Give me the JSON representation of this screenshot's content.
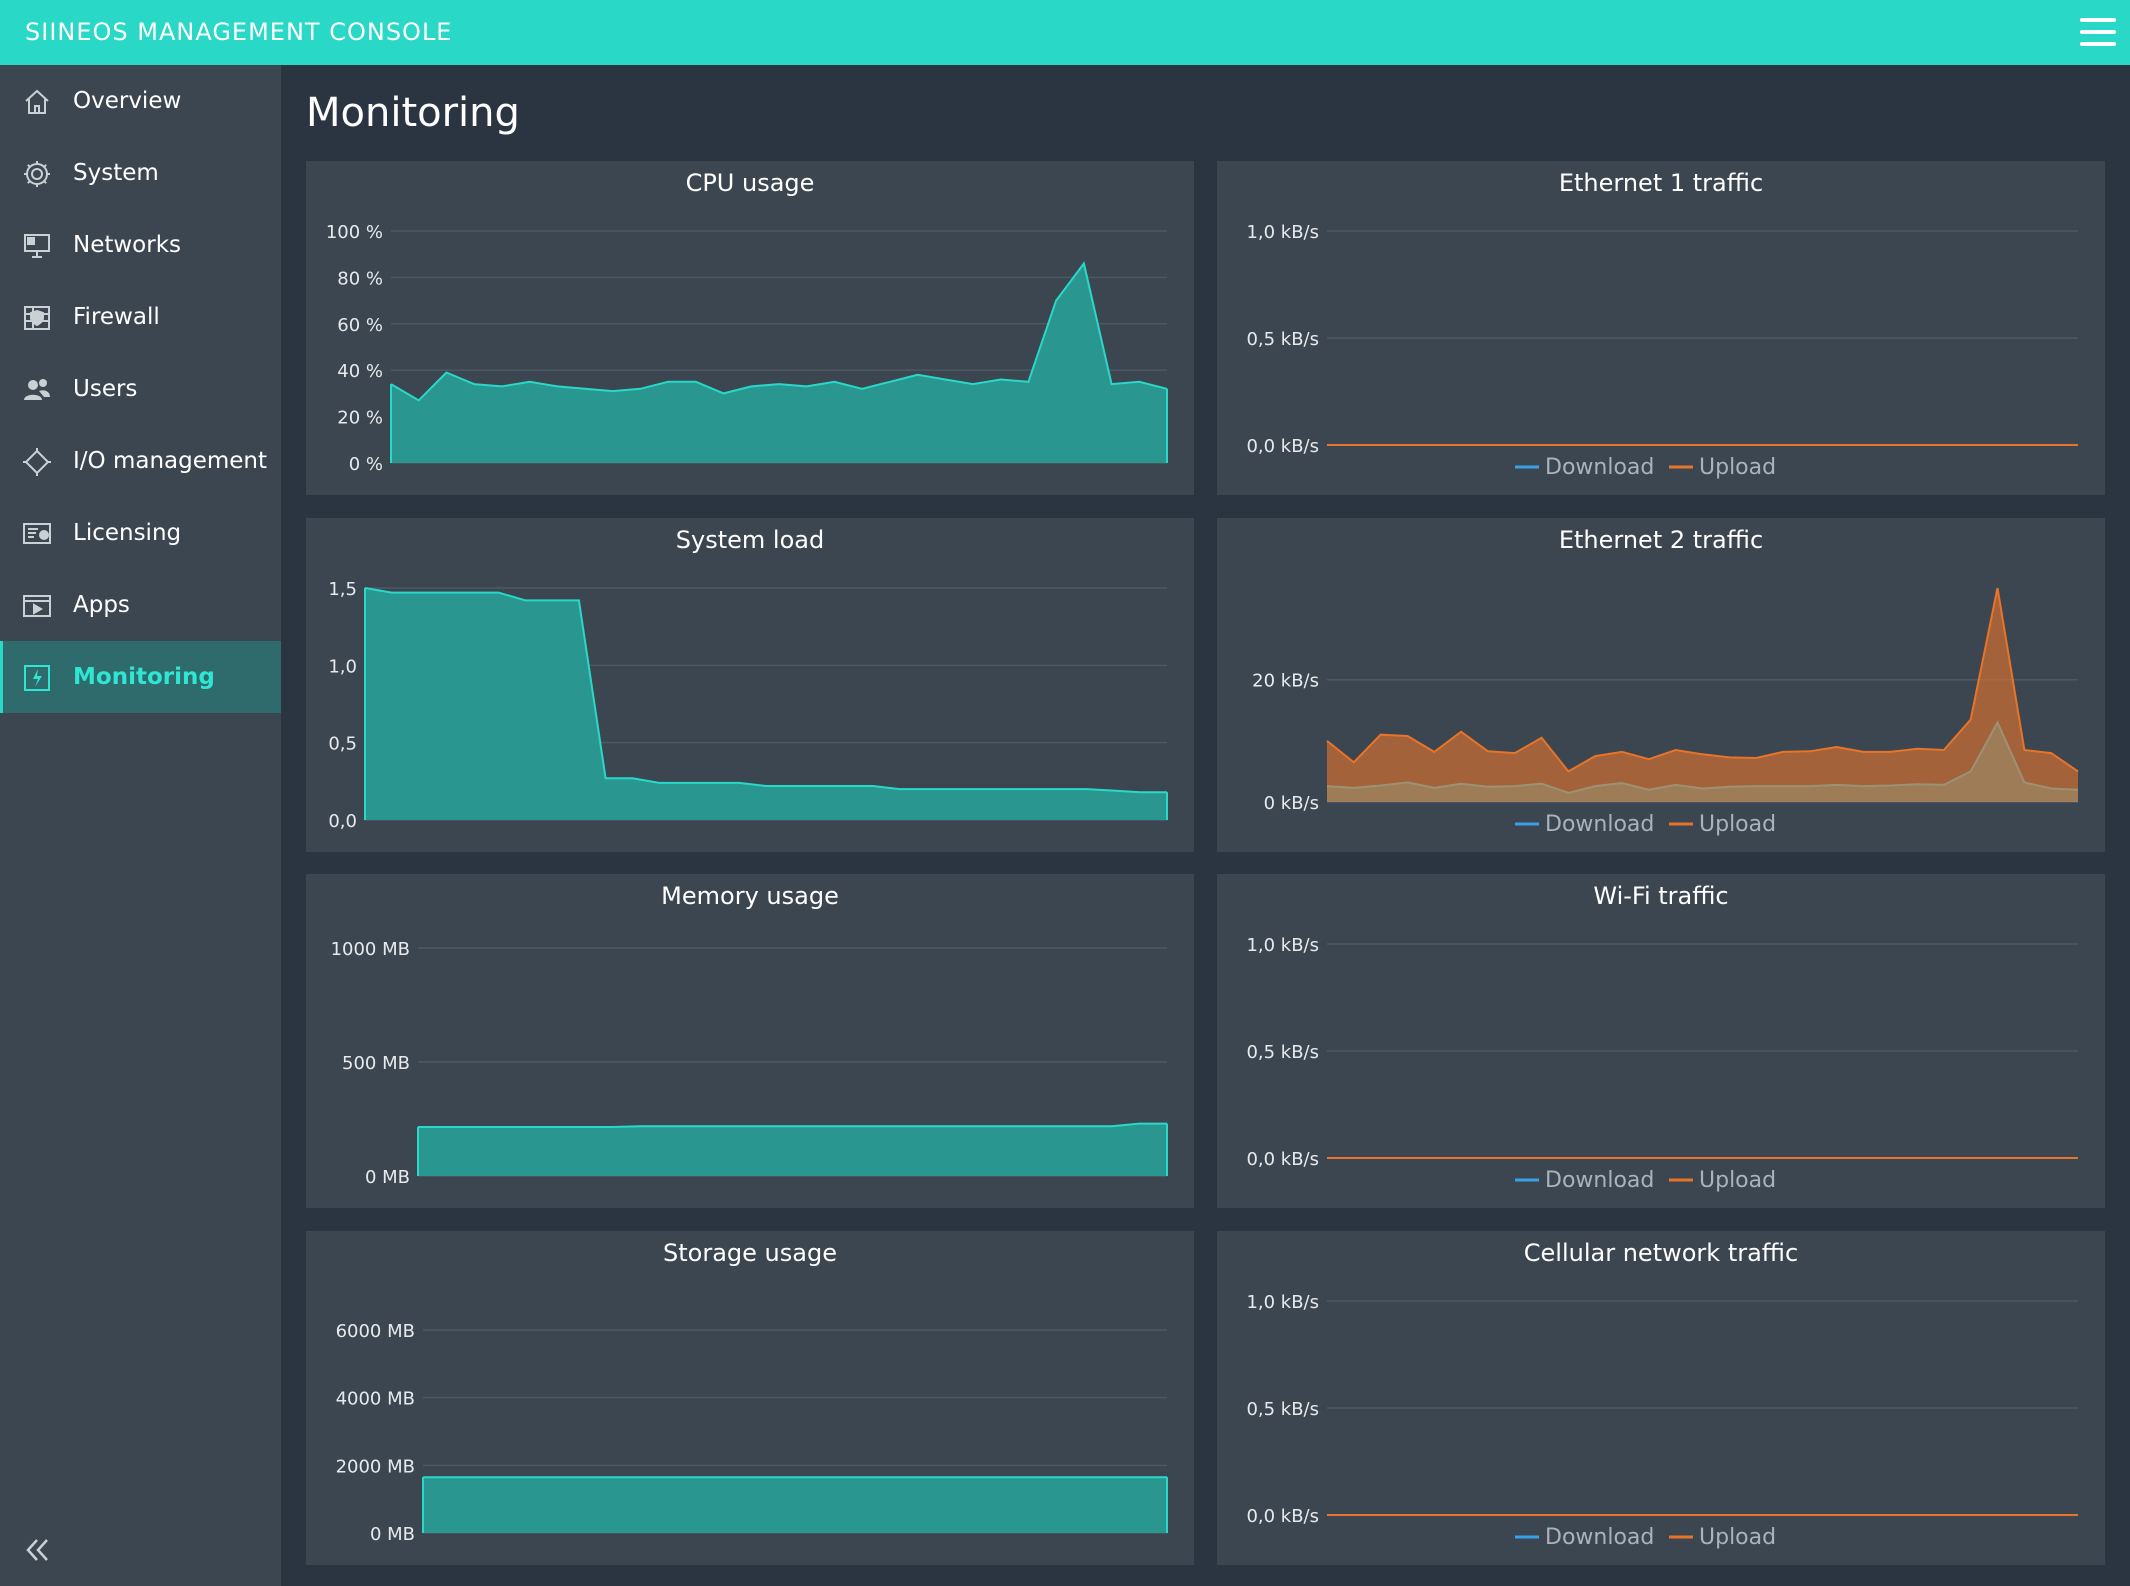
{
  "app": {
    "title": "SIINEOS MANAGEMENT CONSOLE"
  },
  "topbar": {
    "menu_icon": "hamburger-menu-icon"
  },
  "sidebar": {
    "items": [
      {
        "label": "Overview",
        "icon": "home-icon",
        "active": false
      },
      {
        "label": "System",
        "icon": "gear-icon",
        "active": false
      },
      {
        "label": "Networks",
        "icon": "network-monitor-icon",
        "active": false
      },
      {
        "label": "Firewall",
        "icon": "firewall-shield-icon",
        "active": false
      },
      {
        "label": "Users",
        "icon": "users-icon",
        "active": false
      },
      {
        "label": "I/O management",
        "icon": "io-chip-icon",
        "active": false
      },
      {
        "label": "Licensing",
        "icon": "license-card-icon",
        "active": false
      },
      {
        "label": "Apps",
        "icon": "apps-play-icon",
        "active": false
      },
      {
        "label": "Monitoring",
        "icon": "monitoring-icon",
        "active": true
      }
    ],
    "collapse_icon": "double-chevron-left-icon"
  },
  "page": {
    "title": "Monitoring"
  },
  "colors": {
    "accent": "#29d8c7",
    "series_fill": "#2a9690",
    "download": "#3aa0e8",
    "upload": "#e8742a",
    "panel_bg": "#3c4650",
    "page_bg": "#2b3541"
  },
  "chart_data": [
    {
      "id": "cpu",
      "title": "CPU usage",
      "type": "area",
      "ylim": [
        0,
        100
      ],
      "yticks": [
        "100 %",
        "80 %",
        "60 %",
        "40 %",
        "20 %",
        "0 %"
      ],
      "series": [
        {
          "values": [
            34,
            27,
            39,
            34,
            33,
            35,
            33,
            32,
            31,
            32,
            35,
            35,
            30,
            33,
            34,
            33,
            35,
            32,
            35,
            38,
            36,
            34,
            36,
            35,
            70,
            86,
            34,
            35,
            32
          ]
        }
      ]
    },
    {
      "id": "eth1",
      "title": "Ethernet 1 traffic",
      "type": "area",
      "ylim": [
        0,
        1
      ],
      "yticks": [
        "1,0 kB/s",
        "0,5 kB/s",
        "0,0 kB/s"
      ],
      "legend": [
        "Download",
        "Upload"
      ],
      "series": [
        {
          "name": "Upload",
          "values": [
            0,
            0
          ]
        },
        {
          "name": "Download",
          "values": [
            0,
            0
          ]
        }
      ]
    },
    {
      "id": "load",
      "title": "System load",
      "type": "area",
      "ylim": [
        0,
        1.5
      ],
      "yticks": [
        "1,5",
        "1,0",
        "0,5",
        "0,0"
      ],
      "series": [
        {
          "values": [
            1.5,
            1.47,
            1.47,
            1.47,
            1.47,
            1.47,
            1.42,
            1.42,
            1.42,
            0.27,
            0.27,
            0.24,
            0.24,
            0.24,
            0.24,
            0.22,
            0.22,
            0.22,
            0.22,
            0.22,
            0.2,
            0.2,
            0.2,
            0.2,
            0.2,
            0.2,
            0.2,
            0.2,
            0.19,
            0.18,
            0.18
          ]
        }
      ]
    },
    {
      "id": "eth2",
      "title": "Ethernet 2 traffic",
      "type": "area",
      "ylim": [
        0,
        35
      ],
      "yticks": [
        "20 kB/s",
        "0 kB/s"
      ],
      "legend": [
        "Download",
        "Upload"
      ],
      "series": [
        {
          "name": "Upload",
          "values": [
            10,
            6.5,
            11,
            10.8,
            8.2,
            11.5,
            8.3,
            8,
            10.5,
            5,
            7.5,
            8.2,
            7,
            8.5,
            7.8,
            7.3,
            7.2,
            8.2,
            8.3,
            9,
            8.2,
            8.2,
            8.7,
            8.5,
            13.5,
            35,
            8.5,
            8,
            5
          ]
        },
        {
          "name": "Download",
          "values": [
            2.6,
            2.3,
            2.7,
            3.2,
            2.3,
            3,
            2.5,
            2.6,
            3,
            1.5,
            2.6,
            3.1,
            2,
            2.8,
            2.2,
            2.5,
            2.6,
            2.6,
            2.6,
            2.8,
            2.6,
            2.7,
            2.9,
            2.8,
            5,
            13,
            3.2,
            2.2,
            2
          ]
        }
      ]
    },
    {
      "id": "mem",
      "title": "Memory usage",
      "type": "area",
      "ylim": [
        0,
        1000
      ],
      "yticks": [
        "1000 MB",
        "500 MB",
        "0 MB"
      ],
      "series": [
        {
          "values": [
            215,
            215,
            215,
            215,
            215,
            215,
            215,
            215,
            218,
            218,
            218,
            218,
            218,
            218,
            218,
            218,
            218,
            218,
            218,
            218,
            218,
            218,
            218,
            218,
            218,
            218,
            230,
            230
          ]
        }
      ]
    },
    {
      "id": "wifi",
      "title": "Wi-Fi traffic",
      "type": "area",
      "ylim": [
        0,
        1
      ],
      "yticks": [
        "1,0 kB/s",
        "0,5 kB/s",
        "0,0 kB/s"
      ],
      "legend": [
        "Download",
        "Upload"
      ],
      "series": [
        {
          "name": "Upload",
          "values": [
            0,
            0
          ]
        },
        {
          "name": "Download",
          "values": [
            0,
            0
          ]
        }
      ]
    },
    {
      "id": "storage",
      "title": "Storage usage",
      "type": "area",
      "ylim": [
        0,
        6000
      ],
      "yticks": [
        "6000 MB",
        "4000 MB",
        "2000 MB",
        "0 MB"
      ],
      "series": [
        {
          "values": [
            1650,
            1650,
            1650,
            1650,
            1650,
            1650,
            1650,
            1650,
            1650,
            1650
          ]
        }
      ]
    },
    {
      "id": "cell",
      "title": "Cellular network traffic",
      "type": "area",
      "ylim": [
        0,
        1
      ],
      "yticks": [
        "1,0 kB/s",
        "0,5 kB/s",
        "0,0 kB/s"
      ],
      "legend": [
        "Download",
        "Upload"
      ],
      "series": [
        {
          "name": "Upload",
          "values": [
            0,
            0
          ]
        },
        {
          "name": "Download",
          "values": [
            0,
            0
          ]
        }
      ]
    }
  ]
}
